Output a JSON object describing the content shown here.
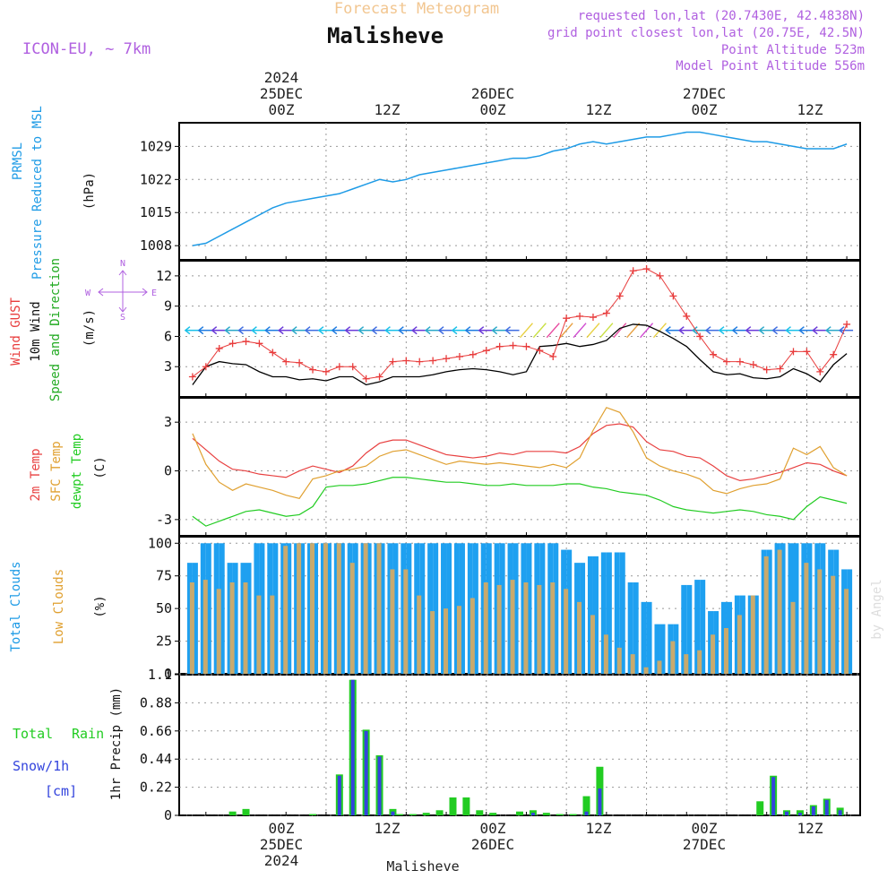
{
  "header": {
    "subtitle": "Forecast Meteogram",
    "location": "Malisheve",
    "model": "ICON-EU, ~ 7km",
    "requested": "requested lon,lat (20.7430E, 42.4838N)",
    "grid_point": "grid point closest lon,lat (20.75E, 42.5N)",
    "point_altitude": "Point Altitude 523m",
    "model_altitude": "Model Point Altitude 556m"
  },
  "time_axis": {
    "top_year": "2024",
    "day_labels": [
      "25DEC",
      "26DEC",
      "27DEC"
    ],
    "hour_labels": [
      "00Z",
      "12Z",
      "00Z",
      "12Z",
      "00Z",
      "12Z"
    ],
    "bottom_year": "2024",
    "footer_location": "Malisheve"
  },
  "panel_labels": {
    "pressure": [
      "PRMSL",
      "Pressure Reduced to MSL",
      "(hPa)"
    ],
    "wind": [
      "Wind GUST",
      "10m Wind",
      "Speed and Direction",
      "(m/s)"
    ],
    "compass": [
      "N",
      "S",
      "W",
      "E"
    ],
    "temp": [
      "2m Temp",
      "SFC Temp",
      "dewpt Temp",
      "(C)"
    ],
    "clouds": [
      "Total Clouds",
      "Low Clouds",
      "(%)"
    ],
    "precip": [
      "Total",
      "Rain",
      "Snow/1h",
      "[cm]",
      "1hr Precip (mm)"
    ]
  },
  "watermark": "by Angel",
  "colors": {
    "pressure": "#1e9be6",
    "gust": "#e83c3c",
    "wind": "#000000",
    "wind_label_green": "#22aa22",
    "temp2m": "#e84040",
    "sfc": "#e0a030",
    "dew": "#22cc22",
    "total_cloud": "#1ea0f0",
    "low_cloud": "#c8aa6e",
    "rain": "#22cc22",
    "snow": "#3344dd",
    "header_purple": "#b060e0",
    "header_orange": "#f2c690"
  },
  "chart_data": [
    {
      "type": "line",
      "name": "pressure",
      "ylim": [
        1005,
        1034
      ],
      "yticks": [
        "1008",
        "1015",
        "1022",
        "1029"
      ],
      "x_hours": [
        -20,
        -18,
        -16,
        -14,
        -12,
        -10,
        -8,
        -6,
        -4,
        -2,
        0,
        2,
        4,
        6,
        8,
        10,
        12,
        14,
        16,
        18,
        20,
        22,
        24,
        26,
        28,
        30,
        32,
        34,
        36,
        38,
        40,
        42,
        44,
        46,
        48,
        50,
        52,
        54,
        56,
        58,
        60,
        62,
        64,
        66,
        68,
        70,
        72,
        74,
        76,
        78
      ],
      "series": [
        {
          "values": [
            1008.0,
            1008.5,
            1010.0,
            1011.5,
            1013.0,
            1014.5,
            1016.0,
            1017.0,
            1017.5,
            1018.0,
            1018.5,
            1019.0,
            1020.0,
            1021.0,
            1022.0,
            1021.5,
            1022.0,
            1023.0,
            1023.5,
            1024.0,
            1024.5,
            1025.0,
            1025.5,
            1026.0,
            1026.5,
            1026.5,
            1027.0,
            1028.0,
            1028.5,
            1029.5,
            1030.0,
            1029.5,
            1030.0,
            1030.5,
            1031.0,
            1031.0,
            1031.5,
            1032.0,
            1032.0,
            1031.5,
            1031.0,
            1030.5,
            1030.0,
            1030.0,
            1029.5,
            1029.0,
            1028.5,
            1028.5,
            1028.5,
            1029.5
          ]
        }
      ]
    },
    {
      "type": "line",
      "name": "wind",
      "ylim": [
        0,
        13.5
      ],
      "yticks": [
        "3",
        "6",
        "9",
        "12"
      ],
      "x_hours": [
        -20,
        -18,
        -16,
        -14,
        -12,
        -10,
        -8,
        -6,
        -4,
        -2,
        0,
        2,
        4,
        6,
        8,
        10,
        12,
        14,
        16,
        18,
        20,
        22,
        24,
        26,
        28,
        30,
        32,
        34,
        36,
        38,
        40,
        42,
        44,
        46,
        48,
        50,
        52,
        54,
        56,
        58,
        60,
        62,
        64,
        66,
        68,
        70,
        72,
        74,
        76,
        78
      ],
      "series": [
        {
          "name": "Wind GUST",
          "values": [
            2.0,
            3.0,
            4.8,
            5.3,
            5.5,
            5.3,
            4.4,
            3.5,
            3.4,
            2.7,
            2.5,
            3.0,
            3.0,
            1.8,
            2.0,
            3.5,
            3.6,
            3.5,
            3.6,
            3.8,
            4.0,
            4.2,
            4.6,
            5.0,
            5.1,
            5.0,
            4.6,
            4.0,
            7.8,
            8.0,
            7.9,
            8.3,
            10.0,
            12.5,
            12.7,
            12.0,
            10.0,
            8.0,
            6.0,
            4.2,
            3.5,
            3.5,
            3.2,
            2.7,
            2.8,
            4.5,
            4.5,
            2.5,
            4.2,
            7.2
          ]
        },
        {
          "name": "10m Wind",
          "values": [
            1.2,
            3.0,
            3.5,
            3.3,
            3.2,
            2.5,
            2.0,
            2.0,
            1.7,
            1.8,
            1.6,
            2.0,
            2.0,
            1.2,
            1.5,
            2.0,
            2.0,
            2.0,
            2.2,
            2.5,
            2.7,
            2.8,
            2.7,
            2.5,
            2.2,
            2.5,
            5.0,
            5.1,
            5.3,
            5.0,
            5.2,
            5.6,
            6.8,
            7.2,
            7.1,
            6.5,
            5.8,
            5.0,
            3.7,
            2.5,
            2.2,
            2.3,
            1.9,
            1.8,
            2.0,
            2.8,
            2.3,
            1.5,
            3.2,
            4.3
          ]
        }
      ]
    },
    {
      "type": "line",
      "name": "temperature",
      "ylim": [
        -4.0,
        4.5
      ],
      "yticks": [
        "-3",
        "0",
        "3"
      ],
      "x_hours": [
        -20,
        -18,
        -16,
        -14,
        -12,
        -10,
        -8,
        -6,
        -4,
        -2,
        0,
        2,
        4,
        6,
        8,
        10,
        12,
        14,
        16,
        18,
        20,
        22,
        24,
        26,
        28,
        30,
        32,
        34,
        36,
        38,
        40,
        42,
        44,
        46,
        48,
        50,
        52,
        54,
        56,
        58,
        60,
        62,
        64,
        66,
        68,
        70,
        72,
        74,
        76,
        78
      ],
      "series": [
        {
          "name": "2m Temp",
          "values": [
            2.0,
            1.3,
            0.6,
            0.1,
            0.0,
            -0.2,
            -0.3,
            -0.4,
            0.0,
            0.3,
            0.1,
            -0.1,
            0.3,
            1.1,
            1.7,
            1.9,
            1.9,
            1.6,
            1.3,
            1.0,
            0.9,
            0.8,
            0.9,
            1.1,
            1.0,
            1.2,
            1.2,
            1.2,
            1.1,
            1.5,
            2.3,
            2.8,
            2.9,
            2.7,
            1.8,
            1.3,
            1.2,
            0.9,
            0.8,
            0.3,
            -0.3,
            -0.6,
            -0.5,
            -0.3,
            -0.1,
            0.2,
            0.5,
            0.4,
            0.0,
            -0.3
          ]
        },
        {
          "name": "SFC Temp",
          "values": [
            2.3,
            0.4,
            -0.7,
            -1.2,
            -0.8,
            -1.0,
            -1.2,
            -1.5,
            -1.7,
            -0.5,
            -0.3,
            0.0,
            0.1,
            0.3,
            0.9,
            1.2,
            1.3,
            1.0,
            0.7,
            0.4,
            0.6,
            0.5,
            0.4,
            0.5,
            0.4,
            0.3,
            0.2,
            0.4,
            0.2,
            0.8,
            2.5,
            3.9,
            3.6,
            2.4,
            0.8,
            0.3,
            0.0,
            -0.2,
            -0.5,
            -1.2,
            -1.4,
            -1.1,
            -0.9,
            -0.8,
            -0.5,
            1.4,
            1.0,
            1.5,
            0.2,
            -0.3
          ]
        },
        {
          "name": "dewpt Temp",
          "values": [
            -2.8,
            -3.4,
            -3.1,
            -2.8,
            -2.5,
            -2.4,
            -2.6,
            -2.8,
            -2.7,
            -2.2,
            -1.0,
            -0.9,
            -0.9,
            -0.8,
            -0.6,
            -0.4,
            -0.4,
            -0.5,
            -0.6,
            -0.7,
            -0.7,
            -0.8,
            -0.9,
            -0.9,
            -0.8,
            -0.9,
            -0.9,
            -0.9,
            -0.8,
            -0.8,
            -1.0,
            -1.1,
            -1.3,
            -1.4,
            -1.5,
            -1.8,
            -2.2,
            -2.4,
            -2.5,
            -2.6,
            -2.5,
            -2.4,
            -2.5,
            -2.7,
            -2.8,
            -3.0,
            -2.2,
            -1.6,
            -1.8,
            -2.0
          ]
        }
      ]
    },
    {
      "type": "bar",
      "name": "clouds",
      "ylim": [
        0,
        105
      ],
      "yticks": [
        "0",
        "25",
        "50",
        "75",
        "100"
      ],
      "x_hours": [
        -20,
        -18,
        -16,
        -14,
        -12,
        -10,
        -8,
        -6,
        -4,
        -2,
        0,
        2,
        4,
        6,
        8,
        10,
        12,
        14,
        16,
        18,
        20,
        22,
        24,
        26,
        28,
        30,
        32,
        34,
        36,
        38,
        40,
        42,
        44,
        46,
        48,
        50,
        52,
        54,
        56,
        58,
        60,
        62,
        64,
        66,
        68,
        70,
        72,
        74,
        76,
        78
      ],
      "series": [
        {
          "name": "Total Clouds",
          "values": [
            85,
            100,
            100,
            85,
            85,
            100,
            100,
            100,
            100,
            100,
            100,
            100,
            100,
            100,
            100,
            100,
            100,
            100,
            100,
            100,
            100,
            100,
            100,
            100,
            100,
            100,
            100,
            100,
            95,
            85,
            90,
            93,
            93,
            70,
            55,
            38,
            38,
            68,
            72,
            48,
            55,
            60,
            60,
            95,
            100,
            100,
            100,
            100,
            95,
            80
          ]
        },
        {
          "name": "Low Clouds",
          "values": [
            70,
            72,
            65,
            70,
            70,
            60,
            60,
            98,
            100,
            100,
            100,
            100,
            85,
            100,
            100,
            80,
            80,
            60,
            48,
            50,
            52,
            58,
            70,
            68,
            72,
            70,
            68,
            70,
            65,
            55,
            45,
            30,
            20,
            15,
            5,
            10,
            25,
            15,
            18,
            30,
            35,
            45,
            60,
            90,
            95,
            55,
            85,
            80,
            75,
            65
          ]
        }
      ]
    },
    {
      "type": "bar",
      "name": "precipitation",
      "ylim": [
        0,
        1.1
      ],
      "yticks": [
        "0",
        "0.22",
        "0.44",
        "0.66",
        "0.88",
        "1.1"
      ],
      "x_hours": [
        -14,
        -12,
        -2,
        2,
        4,
        6,
        8,
        10,
        11,
        13,
        15,
        17,
        19,
        21,
        23,
        25,
        29,
        31,
        33,
        35,
        37,
        39,
        41,
        65,
        67,
        69,
        71,
        73,
        75,
        77
      ],
      "series": [
        {
          "name": "Total Rain",
          "values": [
            0.03,
            0.05,
            0.01,
            0.32,
            1.06,
            0.67,
            0.47,
            0.05,
            0.01,
            0.01,
            0.02,
            0.04,
            0.14,
            0.14,
            0.04,
            0.02,
            0.03,
            0.04,
            0.02,
            0.01,
            0.01,
            0.15,
            0.38,
            0.11,
            0.31,
            0.04,
            0.04,
            0.08,
            0.13,
            0.06
          ]
        },
        {
          "name": "Snow/1h",
          "values": [
            0,
            0,
            0,
            0.31,
            1.06,
            0.66,
            0.46,
            0.03,
            0,
            0,
            0,
            0,
            0,
            0,
            0,
            0,
            0,
            0.02,
            0,
            0,
            0,
            0.03,
            0.21,
            0,
            0.3,
            0.03,
            0.02,
            0.07,
            0.12,
            0.04
          ]
        }
      ]
    }
  ]
}
